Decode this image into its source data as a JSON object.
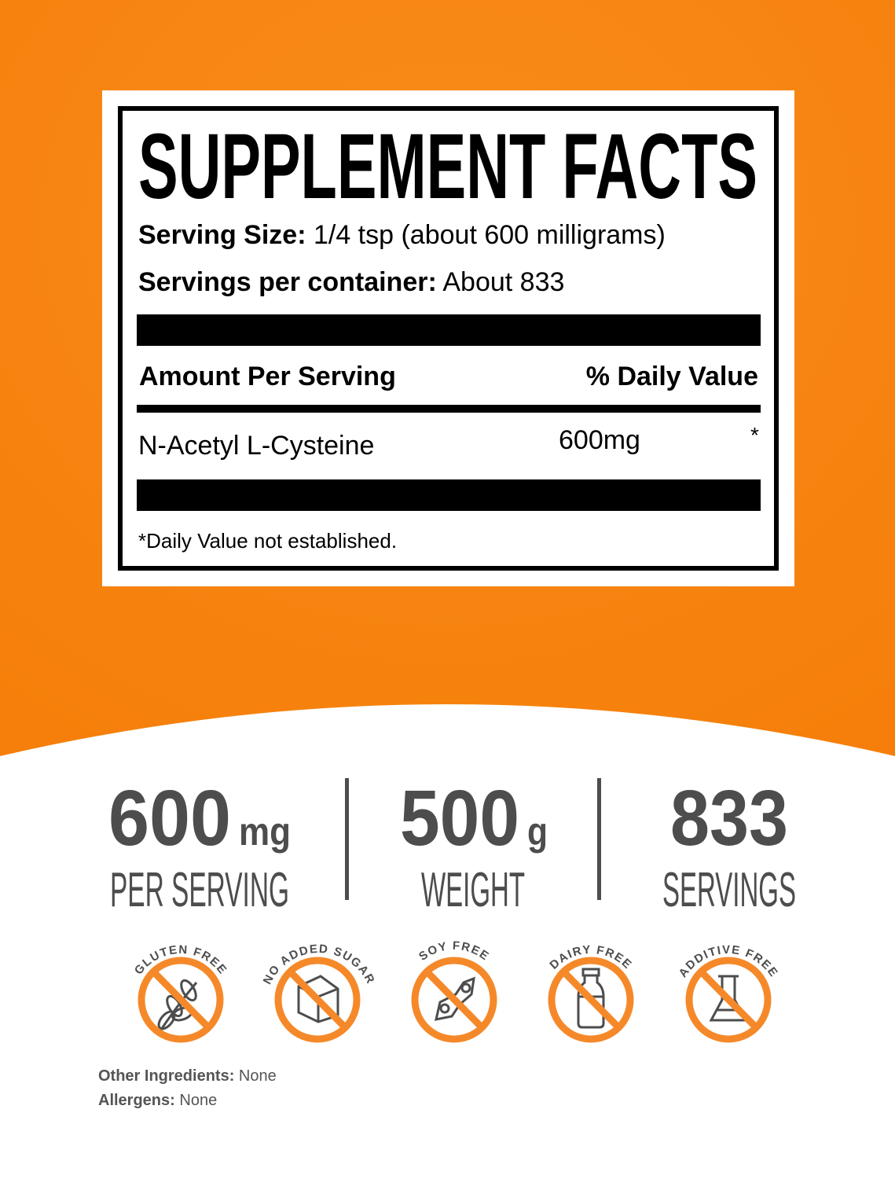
{
  "colors": {
    "orange": "#f7850f",
    "icon_orange": "#f5892a",
    "dark_gray": "#4d4d4d"
  },
  "facts": {
    "title": "SUPPLEMENT FACTS",
    "serving_size_label": "Serving Size:",
    "serving_size_value": "1/4 tsp (about 600 milligrams)",
    "servings_label": "Servings per container:",
    "servings_value": "About 833",
    "amount_header": "Amount Per Serving",
    "dv_header": "% Daily Value",
    "rows": [
      {
        "name": "N-Acetyl L-Cysteine",
        "amount": "600mg",
        "dv": "*"
      }
    ],
    "footnote": "*Daily Value not established."
  },
  "stats": [
    {
      "value": "600",
      "unit": "mg",
      "label": "PER SERVING"
    },
    {
      "value": "500",
      "unit": "g",
      "label": "WEIGHT"
    },
    {
      "value": "833",
      "unit": "",
      "label": "SERVINGS"
    }
  ],
  "badges": [
    {
      "label": "GLUTEN FREE",
      "icon": "wheat-icon"
    },
    {
      "label": "NO ADDED SUGAR",
      "icon": "sugar-cube-icon"
    },
    {
      "label": "SOY FREE",
      "icon": "soybean-icon"
    },
    {
      "label": "DAIRY FREE",
      "icon": "milk-bottle-icon"
    },
    {
      "label": "ADDITIVE FREE",
      "icon": "flask-icon"
    }
  ],
  "ingredients": {
    "other_label": "Other Ingredients:",
    "other_value": "None",
    "allergens_label": "Allergens:",
    "allergens_value": "None"
  }
}
